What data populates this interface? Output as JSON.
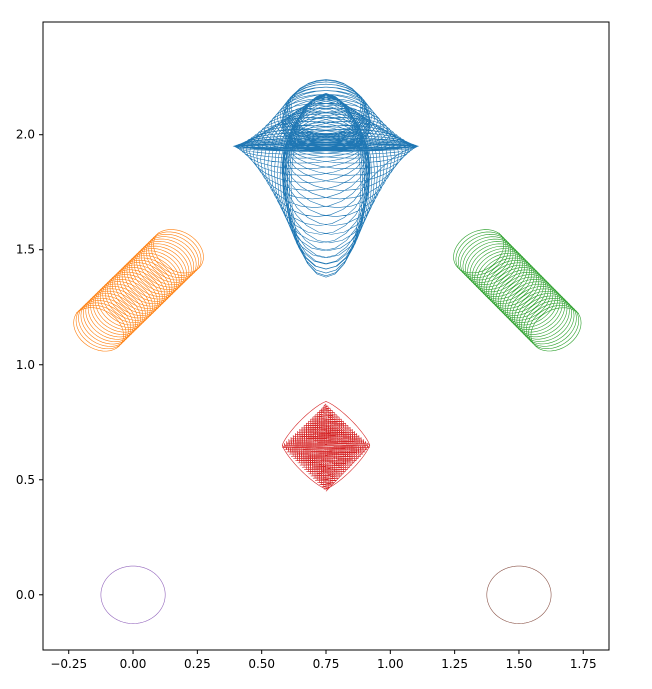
{
  "chart_data": {
    "type": "line",
    "title": "",
    "xlabel": "",
    "ylabel": "",
    "xlim": [
      -0.35,
      1.85
    ],
    "ylim": [
      -0.24,
      2.49
    ],
    "xticks": [
      -0.25,
      0.0,
      0.25,
      0.5,
      0.75,
      1.0,
      1.25,
      1.5,
      1.75
    ],
    "xtick_labels": [
      "−0.25",
      "0.00",
      "0.25",
      "0.50",
      "0.75",
      "1.00",
      "1.25",
      "1.50",
      "1.75"
    ],
    "yticks": [
      0.0,
      0.5,
      1.0,
      1.5,
      2.0
    ],
    "ytick_labels": [
      "0.0",
      "0.5",
      "1.0",
      "1.5",
      "2.0"
    ],
    "grid": false,
    "legend": "none",
    "series": [
      {
        "color": "#1f77b4",
        "shape": "heart-shaped spirograph with a central four-pointed star",
        "center": [
          0.75,
          1.95
        ],
        "x_range": [
          0.39,
          1.11
        ],
        "y_range": [
          1.45,
          2.36
        ]
      },
      {
        "color": "#ff7f0e",
        "shape": "tubular coil along a diagonal",
        "from": [
          -0.14,
          1.15
        ],
        "to": [
          0.18,
          1.5
        ],
        "x_range": [
          -0.25,
          0.3
        ],
        "y_range": [
          0.93,
          1.61
        ]
      },
      {
        "color": "#2ca02c",
        "shape": "tubular coil along a diagonal",
        "from": [
          1.34,
          1.5
        ],
        "to": [
          1.65,
          1.15
        ],
        "x_range": [
          1.2,
          1.75
        ],
        "y_range": [
          0.93,
          1.61
        ]
      },
      {
        "color": "#d62728",
        "shape": "diamond-shaped mesh",
        "center": [
          0.75,
          0.65
        ],
        "x_range": [
          0.58,
          0.92
        ],
        "y_range": [
          0.45,
          0.83
        ]
      },
      {
        "color": "#9467bd",
        "shape": "ellipse",
        "center": [
          0.0,
          0.0
        ],
        "x_range": [
          -0.12,
          0.12
        ],
        "y_range": [
          -0.12,
          0.12
        ]
      },
      {
        "color": "#8c564b",
        "shape": "ellipse",
        "center": [
          1.5,
          0.0
        ],
        "x_range": [
          1.38,
          1.62
        ],
        "y_range": [
          -0.12,
          0.12
        ]
      }
    ]
  }
}
